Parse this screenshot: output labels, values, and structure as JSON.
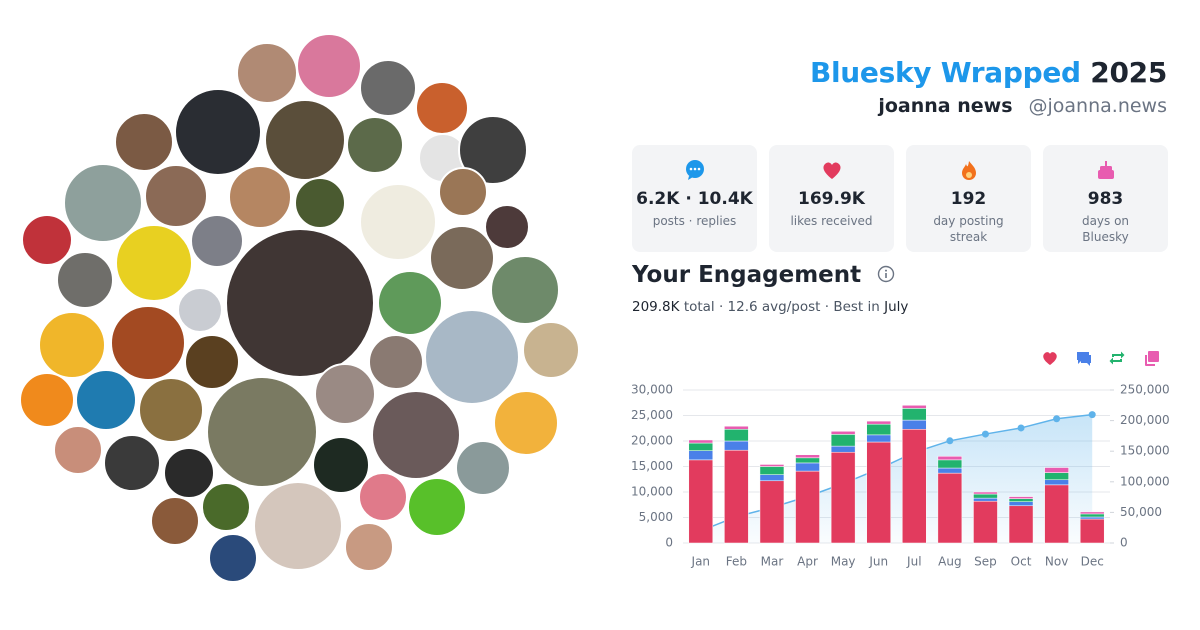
{
  "header": {
    "title": "Bluesky Wrapped",
    "year": "2025",
    "name": "joanna news",
    "handle": "@joanna.news"
  },
  "stats": [
    {
      "value": "6.2K · 10.4K",
      "label": "posts · replies"
    },
    {
      "value": "169.9K",
      "label": "likes received"
    },
    {
      "value": "192",
      "label": "day posting streak"
    },
    {
      "value": "983",
      "label": "days on Bluesky"
    }
  ],
  "chart_data": {
    "type": "bar",
    "stacked": true,
    "title": "Your Engagement",
    "summary": {
      "total": "209.8K",
      "text": "total · 12.6 avg/post · Best in",
      "best": "July"
    },
    "categories": [
      "Jan",
      "Feb",
      "Mar",
      "Apr",
      "May",
      "Jun",
      "Jul",
      "Aug",
      "Sep",
      "Oct",
      "Nov",
      "Dec"
    ],
    "series": [
      {
        "color": "#e23b5e",
        "values": [
          16300,
          18200,
          12200,
          14100,
          17800,
          19800,
          22300,
          13700,
          8200,
          7300,
          11400,
          4700
        ]
      },
      {
        "color": "#4a80e8",
        "values": [
          1800,
          1800,
          1200,
          1600,
          1200,
          1400,
          1800,
          1000,
          600,
          800,
          1000,
          400
        ]
      },
      {
        "color": "#22b36e",
        "values": [
          1500,
          2300,
          1600,
          1000,
          2300,
          2100,
          2300,
          1600,
          800,
          600,
          1400,
          600
        ]
      },
      {
        "color": "#e85cb0",
        "values": [
          600,
          600,
          400,
          600,
          600,
          600,
          600,
          700,
          400,
          400,
          1000,
          400
        ]
      },
      {
        "color": "#5fb3ea",
        "axis": "y2",
        "values": [
          20000,
          43000,
          58000,
          76000,
          97000,
          121000,
          148000,
          167000,
          178000,
          188000,
          203000,
          209800
        ]
      }
    ],
    "ylim": [
      0,
      30000
    ],
    "yticks": [
      0,
      {
        "value": 5000,
        "label": "5,000"
      },
      {
        "value": 10000,
        "label": "10,000"
      },
      {
        "value": 15000,
        "label": "15,000"
      },
      {
        "value": 20000,
        "label": "20,000"
      },
      {
        "value": 25000,
        "label": "25,000"
      },
      {
        "value": 30000,
        "label": "30,000"
      }
    ],
    "y2lim": [
      0,
      250000
    ],
    "y2ticks": [
      0,
      {
        "value": 50000,
        "label": "50,000"
      },
      {
        "value": 100000,
        "label": "100,000"
      },
      {
        "value": 150000,
        "label": "150,000"
      },
      {
        "value": 200000,
        "label": "200,000"
      },
      {
        "value": 250000,
        "label": "250,000"
      }
    ],
    "grid": true
  }
}
